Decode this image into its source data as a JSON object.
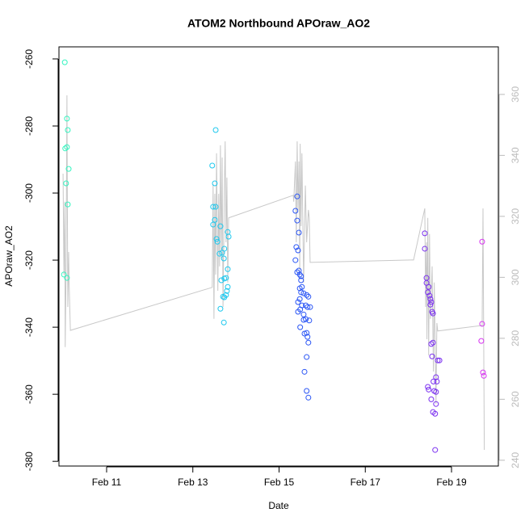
{
  "chart_data": {
    "type": "scatter",
    "title": "ATOM2 Northbound APOraw_AO2",
    "xlabel": "Date",
    "ylabel": "APOraw_AO2",
    "xlim": [
      9.895,
      20.086
    ],
    "ylim": [
      -381.4,
      -256.4
    ],
    "y2lim": [
      238.1,
      375.6
    ],
    "xticks": [
      {
        "value": 11,
        "label": "Feb 11"
      },
      {
        "value": 13,
        "label": "Feb 13"
      },
      {
        "value": 15,
        "label": "Feb 15"
      },
      {
        "value": 17,
        "label": "Feb 17"
      },
      {
        "value": 19,
        "label": "Feb 19"
      }
    ],
    "yticks": [
      -380,
      -360,
      -340,
      -320,
      -300,
      -280,
      -260
    ],
    "y2ticks": [
      240,
      260,
      280,
      300,
      320,
      340,
      360
    ],
    "y2color": "#bbbbbb",
    "series": [
      {
        "type": "line",
        "axis": "y2",
        "color": "#c8c8c8",
        "x": [
          9.99,
          10.01,
          10.03,
          10.04,
          10.06,
          10.08,
          10.1,
          10.12,
          10.13,
          10.16,
          13.45,
          13.47,
          13.49,
          13.51,
          13.53,
          13.55,
          13.57,
          13.58,
          13.6,
          13.62,
          13.64,
          13.66,
          13.68,
          13.7,
          13.72,
          13.73,
          13.75,
          13.77,
          13.79,
          13.81,
          13.83,
          15.33,
          15.34,
          15.38,
          15.4,
          15.42,
          15.44,
          15.46,
          15.48,
          15.49,
          15.51,
          15.53,
          15.57,
          15.61,
          15.64,
          15.68,
          15.7,
          15.72,
          18.12,
          18.38,
          18.4,
          18.42,
          18.43,
          18.45,
          18.47,
          18.49,
          18.51,
          18.55,
          18.58,
          18.6,
          18.64,
          18.66,
          18.68,
          19.71,
          19.73,
          19.76
        ],
        "values": [
          334.0,
          300.9,
          324.8,
          277.1,
          302.3,
          359.7,
          290.3,
          308.3,
          298.3,
          282.6,
          296.7,
          330.6,
          286.4,
          327.4,
          300.9,
          340.7,
          311.5,
          295.6,
          327.4,
          303.6,
          343.3,
          306.2,
          339.3,
          290.3,
          314.2,
          327.4,
          344.6,
          311.5,
          332.7,
          298.3,
          319.5,
          326.9,
          324.8,
          338.0,
          311.5,
          344.6,
          322.1,
          338.0,
          300.9,
          343.8,
          316.8,
          340.7,
          298.3,
          330.1,
          311.5,
          322.1,
          319.5,
          304.9,
          305.7,
          322.6,
          290.3,
          311.5,
          279.7,
          319.5,
          274.4,
          314.2,
          286.4,
          303.6,
          269.1,
          298.3,
          258.5,
          285.0,
          282.4,
          284.2,
          322.6,
          243.4
        ]
      },
      {
        "color": "#33f5c0",
        "x": [
          10.01,
          10.03,
          10.08,
          10.1,
          10.08,
          10.04,
          10.12,
          10.06,
          10.1,
          10.08
        ],
        "values": [
          -324.3,
          -261,
          -277.8,
          -281.2,
          -286.3,
          -286.7,
          -292.8,
          -297.1,
          -303.4,
          -325.3
        ]
      },
      {
        "color": "#1ec8ee",
        "x": [
          13.53,
          13.45,
          13.51,
          13.47,
          13.53,
          13.51,
          13.47,
          13.55,
          13.57,
          13.64,
          13.62,
          13.68,
          13.73,
          13.81,
          13.83,
          13.72,
          13.66,
          13.73,
          13.77,
          13.81,
          13.79,
          13.77,
          13.7,
          13.73,
          13.64,
          13.72,
          13.81
        ],
        "values": [
          -281.2,
          -291.8,
          -297.1,
          -304.1,
          -304.1,
          -308.0,
          -309.4,
          -313.7,
          -314.5,
          -309.9,
          -318.1,
          -317.8,
          -316.6,
          -311.6,
          -313.0,
          -319.5,
          -326.0,
          -325.5,
          -325.3,
          -328.0,
          -329.2,
          -330.4,
          -330.9,
          -331.1,
          -334.5,
          -338.6,
          -322.7
        ]
      },
      {
        "color": "#2a55f5",
        "x": [
          15.42,
          15.38,
          15.42,
          15.46,
          15.4,
          15.44,
          15.38,
          15.42,
          15.46,
          15.48,
          15.51,
          15.51,
          15.53,
          15.48,
          15.51,
          15.57,
          15.64,
          15.68,
          15.48,
          15.44,
          15.53,
          15.62,
          15.66,
          15.72,
          15.49,
          15.44,
          15.57,
          15.62,
          15.57,
          15.7,
          15.49,
          15.59,
          15.64,
          15.66,
          15.68,
          15.64,
          15.59,
          15.64,
          15.68
        ],
        "values": [
          -301,
          -305.3,
          -308.2,
          -311.8,
          -316.1,
          -317.1,
          -320,
          -323.6,
          -323.1,
          -324.3,
          -324.8,
          -326,
          -328,
          -328.4,
          -329.6,
          -329.9,
          -330.4,
          -330.9,
          -331.6,
          -332.5,
          -333.5,
          -333.5,
          -334,
          -334,
          -334.7,
          -335.4,
          -336.2,
          -337.6,
          -337.8,
          -338,
          -340,
          -341.9,
          -341.7,
          -342.9,
          -344.6,
          -348.9,
          -353.3,
          -359,
          -361
        ]
      },
      {
        "color": "#7a2ff0",
        "x": [
          18.38,
          18.38,
          18.42,
          18.42,
          18.47,
          18.49,
          18.45,
          18.51,
          18.53,
          18.51,
          18.55,
          18.57,
          18.53,
          18.57,
          18.55,
          18.68,
          18.72,
          18.64,
          18.66,
          18.58,
          18.45,
          18.47,
          18.6,
          18.64,
          18.53,
          18.64,
          18.57,
          18.62,
          18.62
        ],
        "values": [
          -312,
          -316.6,
          -325.3,
          -326.8,
          -328,
          -330.6,
          -329.6,
          -331.6,
          -332.5,
          -333.3,
          -335.4,
          -335.9,
          -345,
          -344.6,
          -348.7,
          -349.9,
          -349.9,
          -354.9,
          -356.2,
          -356.2,
          -357.8,
          -358.6,
          -359,
          -359.3,
          -361.5,
          -362.9,
          -365.3,
          -365.8,
          -376.6
        ]
      },
      {
        "color": "#d733f0",
        "x": [
          19.71,
          19.71,
          19.69,
          19.73,
          19.75
        ],
        "values": [
          -314.5,
          -339,
          -344.1,
          -353.5,
          -354.5
        ]
      }
    ]
  }
}
